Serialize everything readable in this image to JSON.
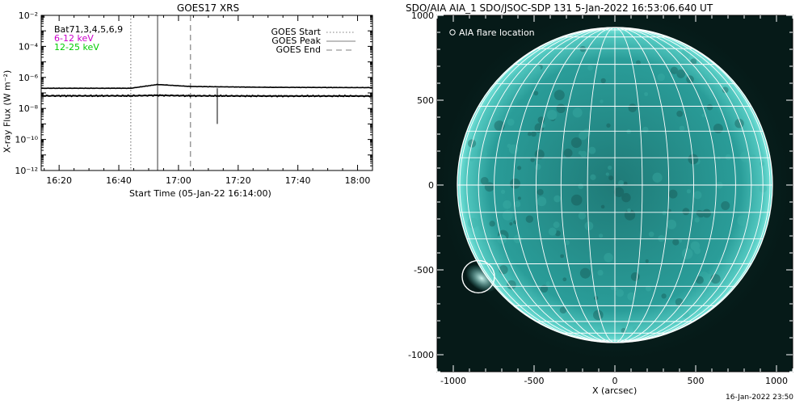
{
  "goes": {
    "title": "GOES17 XRS",
    "ylabel": "X-ray Flux (W m⁻²)",
    "xlabel": "Start Time (05-Jan-22 16:14:00)",
    "energy_labels": [
      {
        "text": "Bat71,3,4,5,6,9",
        "color": "#000000"
      },
      {
        "text": "6-12 keV",
        "color": "#cc00cc"
      },
      {
        "text": "12-25 keV",
        "color": "#00cc00"
      }
    ],
    "legend": [
      {
        "label": "GOES Start",
        "style": "dotted",
        "color": "#999999"
      },
      {
        "label": "GOES Peak",
        "style": "solid",
        "color": "#999999"
      },
      {
        "label": "GOES End",
        "style": "dashed",
        "color": "#999999"
      }
    ]
  },
  "aia": {
    "title": "SDO/AIA AIA_1 SDO/JSOC-SDP 131  5-Jan-2022 16:53:06.640 UT",
    "xlabel": "X (arcsec)",
    "legend_label": "AIA flare location",
    "colors": {
      "disk": "#2a9d99",
      "background": "#061a18",
      "limb": "#7de8de",
      "grid": "#ffffff"
    }
  },
  "footer": {
    "timestamp": "16-Jan-2022 23:50"
  },
  "chart_data": [
    {
      "type": "line",
      "title": "GOES17 XRS",
      "xlabel": "Start Time (05-Jan-22 16:14:00)",
      "ylabel": "X-ray Flux (W m⁻²)",
      "y_scale": "log",
      "ylim": [
        1e-12,
        0.01
      ],
      "xlim": [
        "16:14",
        "18:05"
      ],
      "x_ticks": [
        "16:20",
        "16:40",
        "17:00",
        "17:20",
        "17:40",
        "18:00"
      ],
      "y_ticks": [
        "10⁻¹²",
        "10⁻¹⁰",
        "10⁻⁸",
        "10⁻⁶",
        "10⁻⁴",
        "10⁻²"
      ],
      "series": [
        {
          "name": "",
          "x": [
            "16:14",
            "16:44",
            "16:53",
            "17:04",
            "17:30",
            "18:05"
          ],
          "y": [
            2e-07,
            2e-07,
            3.5e-07,
            2.6e-07,
            2.3e-07,
            2.2e-07
          ]
        },
        {
          "name": "",
          "x": [
            "16:14",
            "16:44",
            "16:53",
            "17:04",
            "17:30",
            "18:05"
          ],
          "y": [
            6.5e-08,
            6.5e-08,
            7e-08,
            6.5e-08,
            6.3e-08,
            6.3e-08
          ]
        }
      ],
      "vertical_lines": [
        {
          "name": "GOES Start",
          "x": "16:44",
          "style": "dotted"
        },
        {
          "name": "GOES Peak",
          "x": "16:53",
          "style": "solid"
        },
        {
          "name": "GOES End",
          "x": "17:04",
          "style": "dashed"
        }
      ],
      "glitch": {
        "x": "17:13",
        "y_top": 2e-07,
        "y_bottom": 1e-09
      }
    },
    {
      "type": "image",
      "title": "SDO/AIA AIA_1 SDO/JSOC-SDP 131  5-Jan-2022 16:53:06.640 UT",
      "xlabel": "X (arcsec)",
      "xlim": [
        -1100,
        1100
      ],
      "ylim": [
        -1100,
        1000
      ],
      "x_ticks": [
        -1000,
        -500,
        0,
        500,
        1000
      ],
      "y_ticks": [
        1000,
        500,
        0,
        -500,
        -1000
      ],
      "solar_radius_arcsec": 975,
      "grid_spacing_deg": 10,
      "flare_location": {
        "x": -845,
        "y": -540,
        "radius": 100
      }
    }
  ]
}
